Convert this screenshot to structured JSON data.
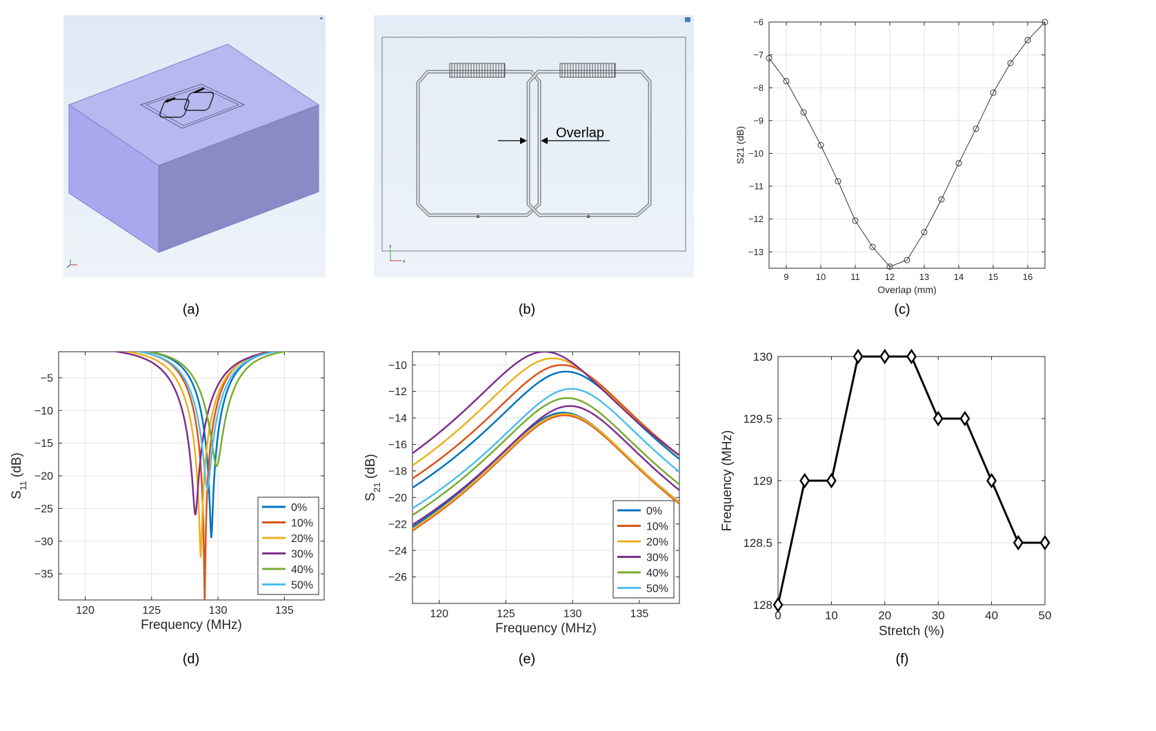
{
  "captions": {
    "a": "(a)",
    "b": "(b)",
    "c": "(c)",
    "d": "(d)",
    "e": "(e)",
    "f": "(f)"
  },
  "panel_b": {
    "annotation": "Overlap",
    "axis_y": "y",
    "axis_x": "x"
  },
  "chart_data": [
    {
      "id": "c",
      "type": "line",
      "title": "",
      "xlabel": "Overlap (mm)",
      "ylabel": "S21 (dB)",
      "xlim": [
        8.5,
        16.5
      ],
      "ylim": [
        -13.5,
        -6
      ],
      "xticks": [
        9,
        10,
        11,
        12,
        13,
        14,
        15,
        16
      ],
      "yticks": [
        -6,
        -7,
        -8,
        -9,
        -10,
        -11,
        -12,
        -13
      ],
      "grid": true,
      "marker": "circle",
      "x": [
        8.5,
        9,
        9.5,
        10,
        10.5,
        11,
        11.5,
        12,
        12.5,
        13,
        13.5,
        14,
        14.5,
        15,
        15.5,
        16,
        16.5
      ],
      "y": [
        -7.1,
        -7.8,
        -8.75,
        -9.75,
        -10.85,
        -12.05,
        -12.85,
        -13.45,
        -13.25,
        -12.4,
        -11.4,
        -10.3,
        -9.25,
        -8.15,
        -7.25,
        -6.55,
        -6.0
      ]
    },
    {
      "id": "d",
      "type": "line",
      "title": "",
      "xlabel": "Frequency (MHz)",
      "ylabel": "S11 (dB)",
      "xlim": [
        118,
        138
      ],
      "ylim": [
        -39,
        -1
      ],
      "xticks": [
        120,
        125,
        130,
        135
      ],
      "yticks": [
        -5,
        -10,
        -15,
        -20,
        -25,
        -30,
        -35
      ],
      "grid": true,
      "legend_position": "bottom-right",
      "series": [
        {
          "name": "0%",
          "color": "#0072BD",
          "f0": 129.5,
          "min": -29.5,
          "w": 2.4
        },
        {
          "name": "10%",
          "color": "#D95319",
          "f0": 129.0,
          "min": -39,
          "w": 2.5
        },
        {
          "name": "20%",
          "color": "#EDB120",
          "f0": 128.7,
          "min": -32.5,
          "w": 2.8
        },
        {
          "name": "30%",
          "color": "#7E2F8E",
          "f0": 128.3,
          "min": -26,
          "w": 3.0
        },
        {
          "name": "40%",
          "color": "#77AC30",
          "f0": 129.9,
          "min": -18.5,
          "w": 2.6
        },
        {
          "name": "50%",
          "color": "#4DBEEE",
          "f0": 129.2,
          "min": -22,
          "w": 2.6
        }
      ]
    },
    {
      "id": "e",
      "type": "line",
      "title": "",
      "xlabel": "Frequency (MHz)",
      "ylabel": "S21 (dB)",
      "xlim": [
        118,
        138
      ],
      "ylim": [
        -28,
        -9
      ],
      "xticks": [
        120,
        125,
        130,
        135
      ],
      "yticks": [
        -10,
        -12,
        -14,
        -16,
        -18,
        -20,
        -22,
        -24,
        -26
      ],
      "grid": true,
      "legend_position": "bottom-right",
      "series": [
        {
          "name": "0%",
          "color": "#0072BD",
          "peaks": [
            [
              129.3,
              -13.6
            ],
            [
              129.5,
              -10.5
            ]
          ]
        },
        {
          "name": "10%",
          "color": "#D95319",
          "peaks": [
            [
              129.4,
              -13.8
            ],
            [
              129.2,
              -10.0
            ]
          ]
        },
        {
          "name": "20%",
          "color": "#EDB120",
          "peaks": [
            [
              129.4,
              -13.7
            ],
            [
              128.5,
              -9.5
            ]
          ]
        },
        {
          "name": "30%",
          "color": "#7E2F8E",
          "peaks": [
            [
              129.8,
              -13.1
            ],
            [
              127.9,
              -9.0
            ]
          ]
        },
        {
          "name": "40%",
          "color": "#77AC30",
          "peaks": [
            [
              129.6,
              -12.5
            ]
          ]
        },
        {
          "name": "50%",
          "color": "#4DBEEE",
          "peaks": [
            [
              129.9,
              -11.8
            ]
          ]
        }
      ]
    },
    {
      "id": "f",
      "type": "line",
      "title": "",
      "xlabel": "Stretch (%)",
      "ylabel": "Frequency (MHz)",
      "xlim": [
        0,
        50
      ],
      "ylim": [
        128,
        130
      ],
      "xticks": [
        0,
        10,
        20,
        30,
        40,
        50
      ],
      "yticks": [
        128,
        128.5,
        129,
        129.5,
        130
      ],
      "grid": true,
      "marker": "diamond",
      "x": [
        0,
        5,
        10,
        15,
        20,
        25,
        30,
        35,
        40,
        45,
        50
      ],
      "y": [
        128,
        129,
        129,
        130,
        130,
        130,
        129.5,
        129.5,
        129,
        128.5,
        128.5
      ]
    }
  ]
}
